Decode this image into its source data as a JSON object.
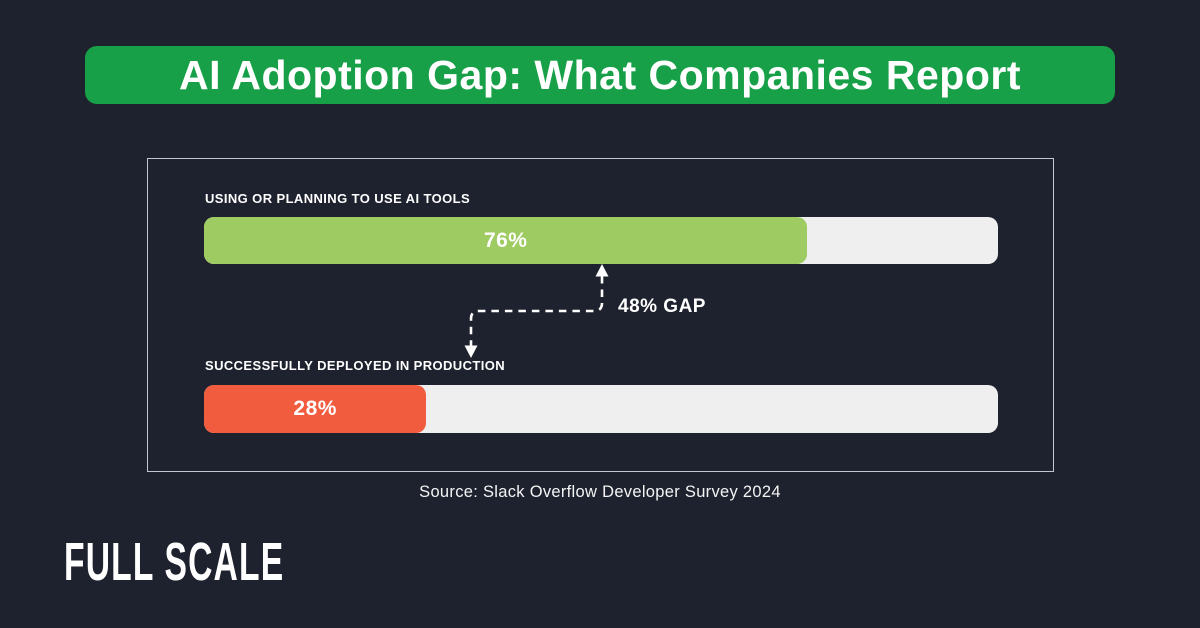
{
  "banner": {
    "title": "AI Adoption Gap: What Companies Report",
    "bg_color": "#18A048",
    "text_color": "#FFFFFF"
  },
  "chart_data": {
    "type": "bar",
    "orientation": "horizontal",
    "title": "AI Adoption Gap: What Companies Report",
    "categories": [
      "Using or planning to use AI tools",
      "Successfully deployed in production"
    ],
    "values": [
      76,
      28
    ],
    "value_labels": [
      "76%",
      "28%"
    ],
    "bar_colors": [
      "#9FCB63",
      "#F15B3E"
    ],
    "track_color": "#EFEFEF",
    "xlim": [
      0,
      100
    ],
    "grid": false,
    "legend": false,
    "annotation": {
      "label": "48% GAP",
      "gap_value": 48
    },
    "source": "Source: Slack Overflow Developer Survey 2024"
  },
  "bars": [
    {
      "label": "USING OR PLANNING TO USE AI TOOLS",
      "value_label": "76%",
      "pct": 76,
      "color": "#9FCB63"
    },
    {
      "label": "SUCCESSFULLY DEPLOYED IN PRODUCTION",
      "value_label": "28%",
      "pct": 28,
      "color": "#F15B3E"
    }
  ],
  "gap": {
    "label": "48% GAP"
  },
  "source": {
    "text": "Source: Slack Overflow Developer Survey 2024"
  },
  "logo": {
    "text": "FULL SCALE"
  },
  "colors": {
    "background": "#1E222E",
    "panel_border": "#C2C7D0"
  }
}
